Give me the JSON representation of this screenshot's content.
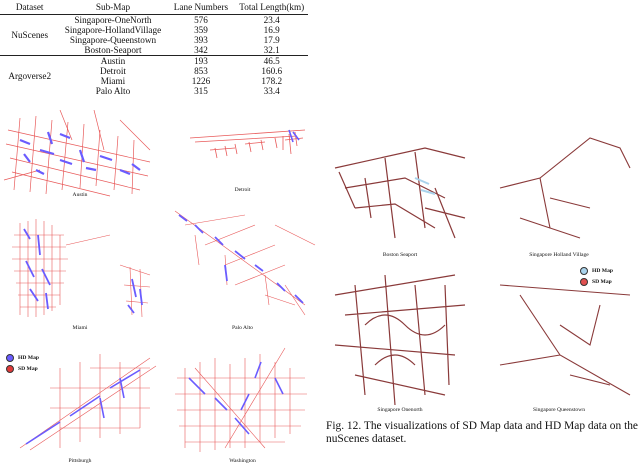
{
  "table": {
    "headers": [
      "Dataset",
      "Sub-Map",
      "Lane Numbers",
      "Total Length(km)"
    ],
    "groups": [
      {
        "dataset": "NuScenes",
        "rows": [
          [
            "Singapore-OneNorth",
            "576",
            "23.4"
          ],
          [
            "Singapore-HollandVillage",
            "359",
            "16.9"
          ],
          [
            "Singapore-Queenstown",
            "393",
            "17.9"
          ],
          [
            "Boston-Seaport",
            "342",
            "32.1"
          ]
        ]
      },
      {
        "dataset": "Argoverse2",
        "rows": [
          [
            "Austin",
            "193",
            "46.5"
          ],
          [
            "Detroit",
            "853",
            "160.6"
          ],
          [
            "Miami",
            "1226",
            "178.2"
          ],
          [
            "Palo Alto",
            "315",
            "33.4"
          ]
        ]
      }
    ]
  },
  "left_maps": {
    "captions": [
      "Austin",
      "Detroit",
      "Miami",
      "Palo Alto",
      "Pittsburgh",
      "Washington"
    ],
    "legend": {
      "hd": "HD Map",
      "sd": "SD Map",
      "hd_color": "#6a5cff",
      "sd_color": "#e03a3a"
    }
  },
  "right_maps": {
    "captions": [
      "Boston Seaport",
      "Singapore Holland Village",
      "Singapore Onenorth",
      "Singapore Queenstown"
    ],
    "legend": {
      "hd": "HD Map",
      "sd": "SD Map",
      "hd_color": "#a9d3ec",
      "sd_color": "#e05050"
    }
  },
  "figure_caption": "Fig. 12.   The visualizations of SD Map data and HD Map data on the nuScenes dataset."
}
